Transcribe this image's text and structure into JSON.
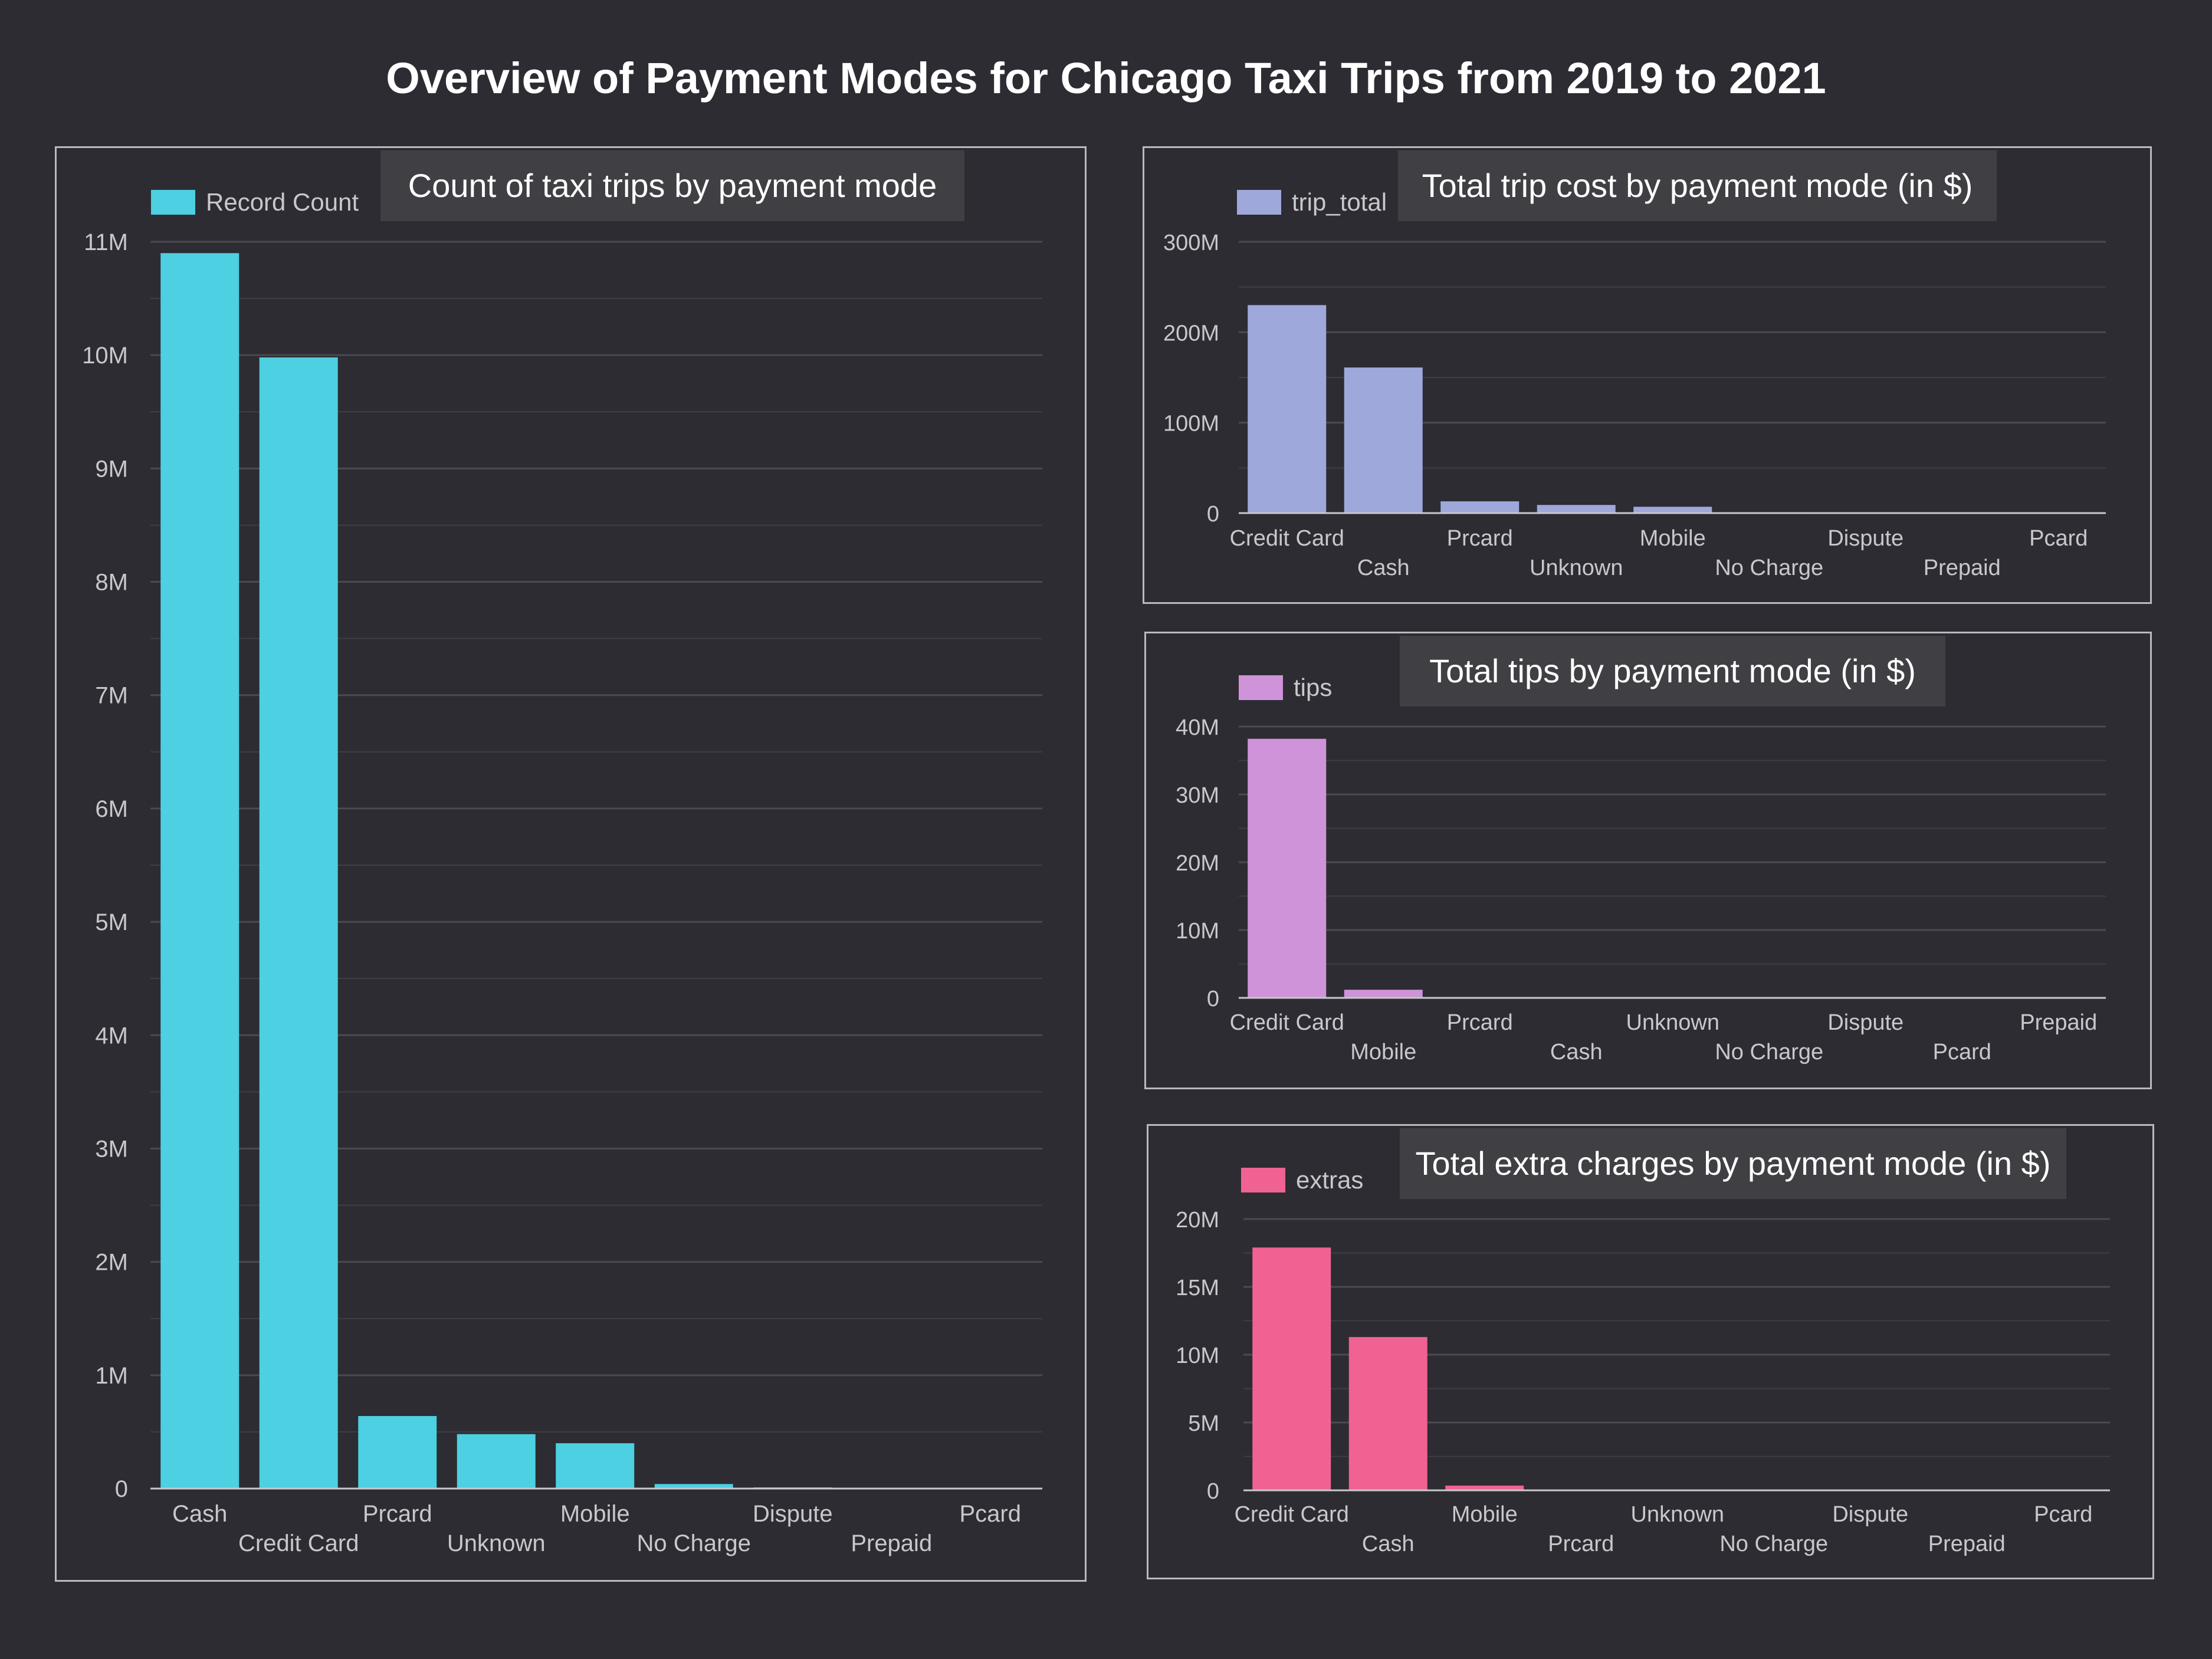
{
  "page": {
    "title": "Overview of Payment Modes for Chicago Taxi Trips from 2019 to 2021"
  },
  "colors": {
    "background": "#2d2c33",
    "grid": "#4a4a50",
    "axis": "#c8c8cc",
    "tick_text": "#c8c8cc"
  },
  "chart_data": [
    {
      "type": "bar",
      "title": "Count of taxi trips by payment mode",
      "legend": "top-left",
      "color": "#4dd0e1",
      "categories": [
        "Cash",
        "Credit Card",
        "Prcard",
        "Unknown",
        "Mobile",
        "No Charge",
        "Dispute",
        "Prepaid",
        "Pcard"
      ],
      "series": [
        {
          "name": "Record Count",
          "values": [
            10900000,
            9980000,
            640000,
            480000,
            400000,
            40000,
            10000,
            3000,
            1000
          ]
        }
      ],
      "yticks": [
        0,
        1000000,
        2000000,
        3000000,
        4000000,
        5000000,
        6000000,
        7000000,
        8000000,
        9000000,
        10000000,
        11000000
      ],
      "ytick_labels": [
        "0",
        "1M",
        "2M",
        "3M",
        "4M",
        "5M",
        "6M",
        "7M",
        "8M",
        "9M",
        "10M",
        "11M"
      ],
      "ylim": [
        0,
        11000000
      ],
      "grid": true
    },
    {
      "type": "bar",
      "title": "Total trip cost by payment mode (in $)",
      "legend": "top-left",
      "color": "#9fa8da",
      "categories": [
        "Credit Card",
        "Cash",
        "Prcard",
        "Unknown",
        "Mobile",
        "No Charge",
        "Dispute",
        "Prepaid",
        "Pcard"
      ],
      "series": [
        {
          "name": "trip_total",
          "values": [
            230000000,
            161000000,
            13000000,
            9000000,
            7000000,
            1000000,
            500000,
            300000,
            100000
          ]
        }
      ],
      "yticks": [
        0,
        100000000,
        200000000,
        300000000
      ],
      "ytick_labels": [
        "0",
        "100M",
        "200M",
        "300M"
      ],
      "ylim": [
        0,
        300000000
      ],
      "grid": true
    },
    {
      "type": "bar",
      "title": "Total tips by payment mode (in $)",
      "legend": "top-left",
      "color": "#ce93d8",
      "categories": [
        "Credit Card",
        "Mobile",
        "Prcard",
        "Cash",
        "Unknown",
        "No Charge",
        "Dispute",
        "Pcard",
        "Prepaid"
      ],
      "series": [
        {
          "name": "tips",
          "values": [
            38200000,
            1200000,
            100000,
            50000,
            30000,
            10000,
            5000,
            2000,
            1000
          ]
        }
      ],
      "yticks": [
        0,
        10000000,
        20000000,
        30000000,
        40000000
      ],
      "ytick_labels": [
        "0",
        "10M",
        "20M",
        "30M",
        "40M"
      ],
      "ylim": [
        0,
        40000000
      ],
      "grid": true
    },
    {
      "type": "bar",
      "title": "Total extra charges by payment mode (in $)",
      "legend": "top-left",
      "color": "#f06292",
      "categories": [
        "Credit Card",
        "Cash",
        "Mobile",
        "Prcard",
        "Unknown",
        "No Charge",
        "Dispute",
        "Prepaid",
        "Pcard"
      ],
      "series": [
        {
          "name": "extras",
          "values": [
            17900000,
            11300000,
            350000,
            50000,
            30000,
            10000,
            5000,
            2000,
            1000
          ]
        }
      ],
      "yticks": [
        0,
        5000000,
        10000000,
        15000000,
        20000000
      ],
      "ytick_labels": [
        "0",
        "5M",
        "10M",
        "15M",
        "20M"
      ],
      "ylim": [
        0,
        20000000
      ],
      "grid": true
    }
  ]
}
